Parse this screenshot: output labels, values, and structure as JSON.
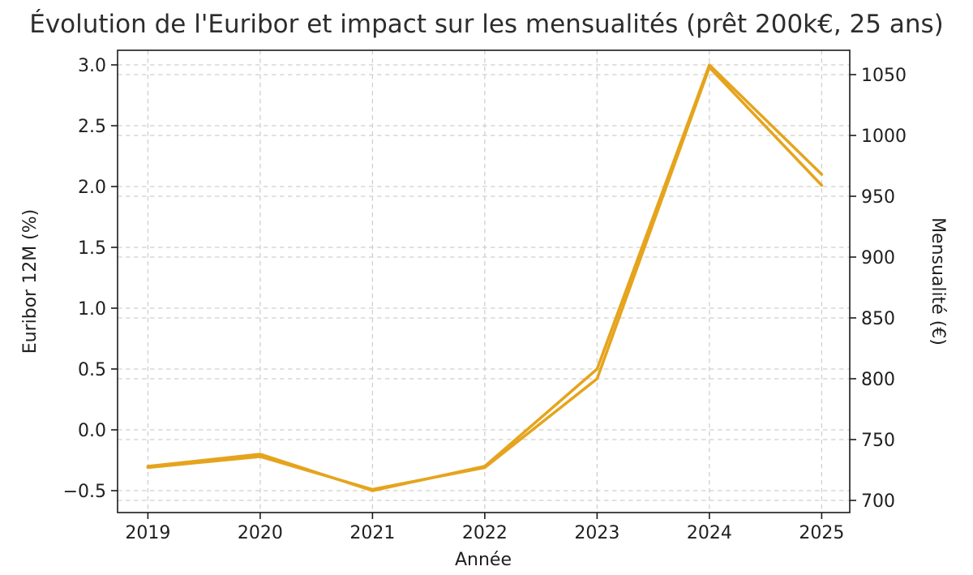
{
  "chart_data": {
    "type": "line",
    "title": "Évolution de l'Euribor et impact sur les mensualités (prêt 200k€, 25 ans)",
    "xlabel": "Année",
    "x": [
      2019,
      2020,
      2021,
      2022,
      2023,
      2024,
      2025
    ],
    "x_tick_labels": [
      "2019",
      "2020",
      "2021",
      "2022",
      "2023",
      "2024",
      "2025"
    ],
    "xlim": [
      2018.73,
      2025.25
    ],
    "left_axis": {
      "label": "Euribor 12M (%)",
      "ticks": [
        3.0,
        2.5,
        2.0,
        1.5,
        1.0,
        0.5,
        0.0,
        -0.5
      ],
      "tick_labels": [
        "3.0",
        "2.5",
        "2.0",
        "1.5",
        "1.0",
        "0.5",
        "0.0",
        "−0.5"
      ],
      "ylim": [
        -0.68,
        3.12
      ]
    },
    "right_axis": {
      "label": "Mensualité (€)",
      "ticks": [
        1050,
        1000,
        950,
        900,
        850,
        800,
        750,
        700
      ],
      "tick_labels": [
        "1050",
        "1000",
        "950",
        "900",
        "850",
        "800",
        "750",
        "700"
      ],
      "ylim": [
        690,
        1070
      ]
    },
    "series": [
      {
        "name": "Euribor 12M (%)",
        "axis": "left",
        "color": "#E5A41D",
        "values": [
          -0.3,
          -0.2,
          -0.5,
          -0.3,
          0.5,
          3.0,
          2.1
        ]
      },
      {
        "name": "Mensualité (€)",
        "axis": "right",
        "color": "#E5A41D",
        "values": [
          727,
          736,
          709,
          727,
          800,
          1056,
          959
        ]
      }
    ],
    "grid": {
      "on": true,
      "style": "dashed",
      "color": "#cfcfcf"
    },
    "legend": {
      "visible": false
    },
    "background": "#ffffff",
    "spine_color": "#1a1a1a",
    "line_width": 3.5
  }
}
